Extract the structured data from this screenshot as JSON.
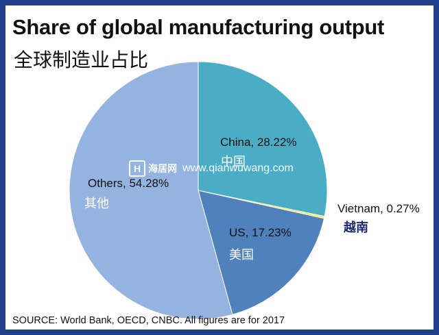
{
  "title": "Share of global manufacturing output",
  "subtitle": "全球制造业占比",
  "source": "SOURCE: World Bank, OECD, CNBC. All figures are for 2017",
  "watermark": {
    "logo_text": "H",
    "brand": "海居网",
    "url": "www.qianwuwang.com"
  },
  "colors": {
    "frame": "#1f3f8a",
    "china": "#4bacc6",
    "vietnam": "#f5ef5a",
    "us": "#4f81bd",
    "others": "#95b3e0"
  },
  "chart_data": {
    "type": "pie",
    "title": "Share of global manufacturing output",
    "start_angle": "12 o'clock",
    "direction": "clockwise",
    "slices": [
      {
        "key": "china",
        "label": "China, 28.22%",
        "label_cn": "中国",
        "value": 28.22,
        "color": "#4bacc6"
      },
      {
        "key": "vietnam",
        "label": "Vietnam, 0.27%",
        "label_cn": "越南",
        "value": 0.27,
        "color": "#f5ef5a"
      },
      {
        "key": "us",
        "label": "US, 17.23%",
        "label_cn": "美国",
        "value": 17.23,
        "color": "#4f81bd"
      },
      {
        "key": "others",
        "label": "Others, 54.28%",
        "label_cn": "其他",
        "value": 54.28,
        "color": "#95b3e0"
      }
    ]
  }
}
